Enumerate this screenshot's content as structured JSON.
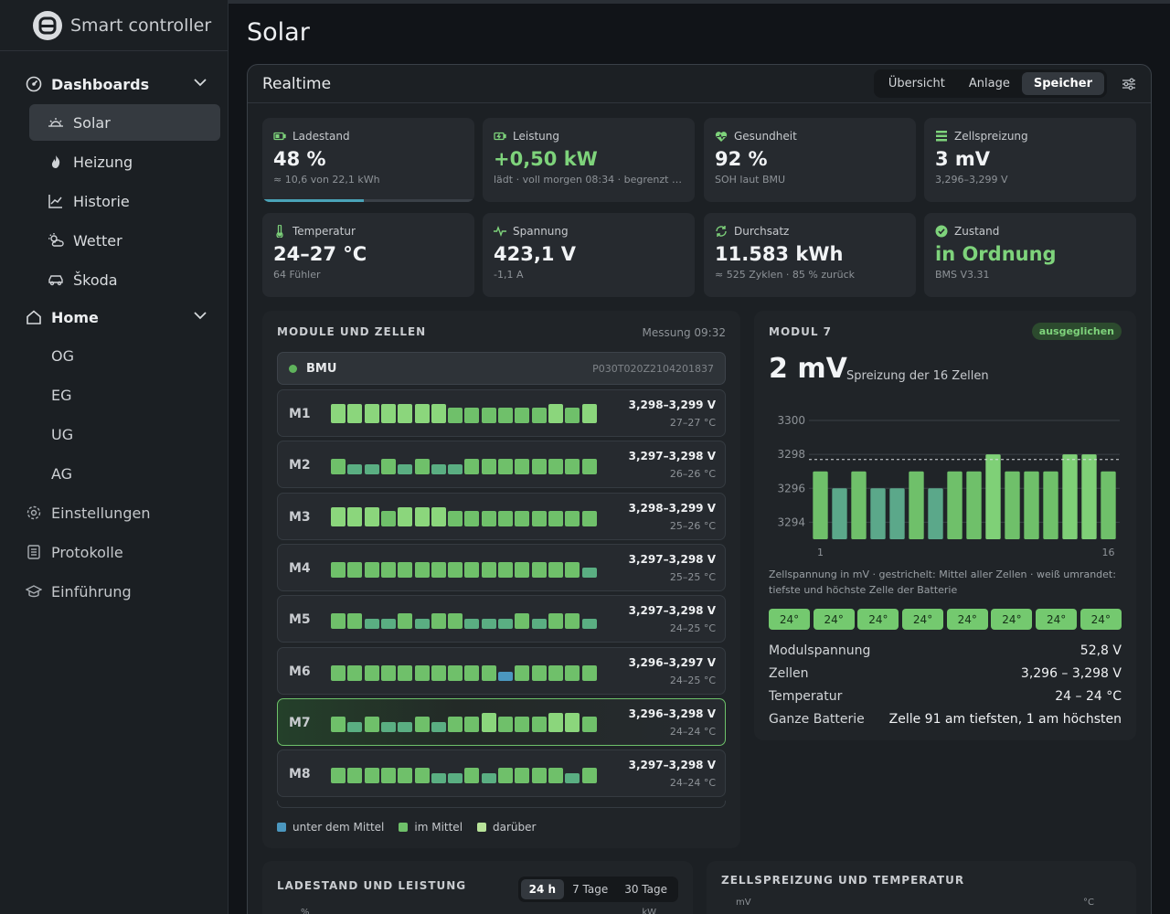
{
  "app": {
    "name": "Smart controller"
  },
  "sidebar": {
    "dashboards_label": "Dashboards",
    "dashboard_items": [
      {
        "label": "Solar",
        "icon": "sunrise-icon"
      },
      {
        "label": "Heizung",
        "icon": "flame-icon"
      },
      {
        "label": "Historie",
        "icon": "chart-line-icon"
      },
      {
        "label": "Wetter",
        "icon": "sun-cloud-icon"
      },
      {
        "label": "Škoda",
        "icon": "car-icon"
      }
    ],
    "home_label": "Home",
    "home_items": [
      "OG",
      "EG",
      "UG",
      "AG"
    ],
    "settings_label": "Einstellungen",
    "logs_label": "Protokolle",
    "intro_label": "Einführung"
  },
  "page": {
    "title": "Solar"
  },
  "realtime": {
    "title": "Realtime",
    "tabs": [
      "Übersicht",
      "Anlage",
      "Speicher"
    ],
    "selected_tab": "Speicher"
  },
  "cards": [
    {
      "label": "Ladestand",
      "value": "48 %",
      "sub": "≈ 10,6 von 22,1 kWh",
      "icon": "battery-icon",
      "progress": 0.48
    },
    {
      "label": "Leistung",
      "value": "+0,50 kW",
      "sub": "lädt · voll morgen 08:34 · begrenzt au…",
      "icon": "battery-charging-icon",
      "green": true
    },
    {
      "label": "Gesundheit",
      "value": "92 %",
      "sub": "SOH laut BMU",
      "icon": "heart-pulse-icon"
    },
    {
      "label": "Zellspreizung",
      "value": "3 mV",
      "sub": "3,296–3,299 V",
      "icon": "bars-icon"
    },
    {
      "label": "Temperatur",
      "value": "24–27 °C",
      "sub": "64 Fühler",
      "icon": "thermometer-icon"
    },
    {
      "label": "Spannung",
      "value": "423,1 V",
      "sub": "-1,1 A",
      "icon": "pulse-icon"
    },
    {
      "label": "Durchsatz",
      "value": "11.583 kWh",
      "sub": "≈ 525 Zyklen · 85 % zurück",
      "icon": "cycle-icon"
    },
    {
      "label": "Zustand",
      "value": "in Ordnung",
      "sub": "BMS V3.31",
      "icon": "check-circle-icon",
      "green_value": true
    }
  ],
  "modules_panel": {
    "title": "MODULE UND ZELLEN",
    "measurement": "Messung 09:32",
    "bmu_label": "BMU",
    "bmu_serial": "P030T020Z2104201837",
    "modules": [
      {
        "name": "M1",
        "volt": "3,298–3,299 V",
        "temp": "27–27 °C",
        "cells": [
          2,
          2,
          2,
          2,
          2,
          2,
          2,
          1,
          1,
          1,
          1,
          1,
          1,
          2,
          1,
          2
        ]
      },
      {
        "name": "M2",
        "volt": "3,297–3,298 V",
        "temp": "26–26 °C",
        "cells": [
          1,
          0,
          0,
          1,
          0,
          1,
          0,
          0,
          1,
          1,
          1,
          1,
          1,
          1,
          1,
          1
        ]
      },
      {
        "name": "M3",
        "volt": "3,298–3,299 V",
        "temp": "25–26 °C",
        "cells": [
          2,
          2,
          2,
          1,
          2,
          2,
          2,
          1,
          1,
          1,
          1,
          1,
          1,
          1,
          1,
          1
        ]
      },
      {
        "name": "M4",
        "volt": "3,297–3,298 V",
        "temp": "25–25 °C",
        "cells": [
          1,
          1,
          1,
          1,
          1,
          1,
          1,
          1,
          1,
          1,
          1,
          1,
          1,
          1,
          1,
          0
        ]
      },
      {
        "name": "M5",
        "volt": "3,297–3,298 V",
        "temp": "24–25 °C",
        "cells": [
          1,
          1,
          0,
          0,
          1,
          0,
          1,
          1,
          0,
          0,
          0,
          1,
          0,
          1,
          1,
          0
        ]
      },
      {
        "name": "M6",
        "volt": "3,296–3,297 V",
        "temp": "24–25 °C",
        "cells": [
          1,
          1,
          1,
          1,
          1,
          1,
          1,
          1,
          1,
          1,
          -1,
          1,
          1,
          1,
          1,
          1
        ]
      },
      {
        "name": "M7",
        "volt": "3,296–3,298 V",
        "temp": "24–24 °C",
        "cells": [
          1,
          0,
          1,
          0,
          0,
          1,
          0,
          1,
          1,
          2,
          1,
          1,
          1,
          2,
          2,
          1
        ],
        "selected": true
      },
      {
        "name": "M8",
        "volt": "3,297–3,298 V",
        "temp": "24–24 °C",
        "cells": [
          1,
          1,
          1,
          1,
          1,
          1,
          0,
          0,
          1,
          0,
          1,
          1,
          1,
          1,
          0,
          1
        ]
      }
    ],
    "legend": [
      {
        "label": "unter dem Mittel",
        "color": "#4b97bf"
      },
      {
        "label": "im Mittel",
        "color": "#6fc06a"
      },
      {
        "label": "darüber",
        "color": "#b8e39a"
      }
    ]
  },
  "module_detail": {
    "title": "MODUL 7",
    "badge": "ausgeglichen",
    "big_value": "2 mV",
    "big_sub": "Spreizung der 16 Zellen",
    "caption": "Zellspannung in mV · gestrichelt: Mittel aller Zellen · weiß umrandet: tiefste und höchste Zelle der Batterie",
    "temps": [
      "24°",
      "24°",
      "24°",
      "24°",
      "24°",
      "24°",
      "24°",
      "24°"
    ],
    "rows": [
      {
        "key": "Modulspannung",
        "value": "52,8 V"
      },
      {
        "key": "Zellen",
        "value": "3,296 – 3,298 V"
      },
      {
        "key": "Temperatur",
        "value": "24 – 24 °C"
      },
      {
        "key": "Ganze Batterie",
        "value": "Zelle 91 am tiefsten, 1 am höchsten"
      }
    ]
  },
  "chart_data": {
    "type": "bar",
    "categories": [
      "1",
      "2",
      "3",
      "4",
      "5",
      "6",
      "7",
      "8",
      "9",
      "10",
      "11",
      "12",
      "13",
      "14",
      "15",
      "16"
    ],
    "values": [
      3297,
      3296,
      3297,
      3296,
      3296,
      3297,
      3296,
      3297,
      3297,
      3298,
      3297,
      3297,
      3297,
      3298,
      3298,
      3297
    ],
    "y_ticks": [
      "3300",
      "3298",
      "3296",
      "3294"
    ],
    "x_ticks": [
      "1",
      "16"
    ],
    "ylim": [
      3293,
      3300
    ],
    "mean_line": 3297.7,
    "below_mean_color": "#5ba88a",
    "mean_color": "#6fc06a",
    "above_mean_color": "#7fd077"
  },
  "bottom_left": {
    "title": "LADESTAND UND LEISTUNG",
    "tabs": [
      "24 h",
      "7 Tage",
      "30 Tage"
    ],
    "y_left_unit": "%",
    "y_right_unit": "kW"
  },
  "bottom_right": {
    "title": "ZELLSPREIZUNG UND TEMPERATUR",
    "y_left_unit": "mV",
    "y_right_unit": "°C"
  }
}
